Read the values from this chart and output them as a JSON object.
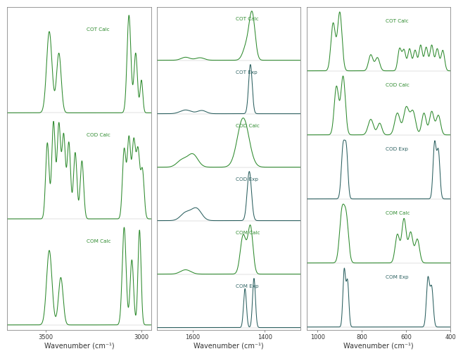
{
  "calc_color": "#2d8a2d",
  "exp_color": "#2a5f5f",
  "fig_bg": "#ffffff",
  "border_color": "#888888",
  "panel1": {
    "xmin": 3700,
    "xmax": 2950,
    "xticks": [
      3500,
      3000
    ],
    "xlabel": "Wavenumber (cm⁻¹)"
  },
  "panel2": {
    "xmin": 1700,
    "xmax": 1300,
    "xticks": [
      1600,
      1400
    ],
    "xlabel": "Wavenumber (cm⁻¹)"
  },
  "panel3": {
    "xmin": 1050,
    "xmax": 400,
    "xticks": [
      1000,
      800,
      600,
      400
    ],
    "xlabel": "Wavenumber (cm⁻¹)"
  }
}
